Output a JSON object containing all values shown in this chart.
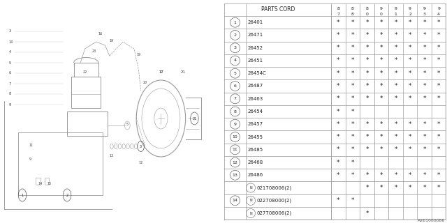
{
  "watermark": "A261000086",
  "col_header": "PARTS CORD",
  "year_cols": [
    "8\n7",
    "8\n8",
    "8\n0",
    "9\n0",
    "9\n1",
    "9\n2",
    "9\n3",
    "9\n4"
  ],
  "rows": [
    {
      "num": "1",
      "code": "26401",
      "has_n": false,
      "num14": false,
      "stars": [
        1,
        1,
        1,
        1,
        1,
        1,
        1,
        1
      ]
    },
    {
      "num": "2",
      "code": "26471",
      "has_n": false,
      "num14": false,
      "stars": [
        1,
        1,
        1,
        1,
        1,
        1,
        1,
        1
      ]
    },
    {
      "num": "3",
      "code": "26452",
      "has_n": false,
      "num14": false,
      "stars": [
        1,
        1,
        1,
        1,
        1,
        1,
        1,
        1
      ]
    },
    {
      "num": "4",
      "code": "26451",
      "has_n": false,
      "num14": false,
      "stars": [
        1,
        1,
        1,
        1,
        1,
        1,
        1,
        1
      ]
    },
    {
      "num": "5",
      "code": "26454C",
      "has_n": false,
      "num14": false,
      "stars": [
        1,
        1,
        1,
        1,
        1,
        1,
        1,
        1
      ]
    },
    {
      "num": "6",
      "code": "26487",
      "has_n": false,
      "num14": false,
      "stars": [
        1,
        1,
        1,
        1,
        1,
        1,
        1,
        1
      ]
    },
    {
      "num": "7",
      "code": "26463",
      "has_n": false,
      "num14": false,
      "stars": [
        1,
        1,
        1,
        1,
        1,
        1,
        1,
        1
      ]
    },
    {
      "num": "8",
      "code": "26454",
      "has_n": false,
      "num14": false,
      "stars": [
        1,
        1,
        0,
        0,
        0,
        0,
        0,
        0
      ]
    },
    {
      "num": "9",
      "code": "26457",
      "has_n": false,
      "num14": false,
      "stars": [
        1,
        1,
        1,
        1,
        1,
        1,
        1,
        1
      ]
    },
    {
      "num": "10",
      "code": "26455",
      "has_n": false,
      "num14": false,
      "stars": [
        1,
        1,
        1,
        1,
        1,
        1,
        1,
        1
      ]
    },
    {
      "num": "11",
      "code": "26485",
      "has_n": false,
      "num14": false,
      "stars": [
        1,
        1,
        1,
        1,
        1,
        1,
        1,
        1
      ]
    },
    {
      "num": "12",
      "code": "26468",
      "has_n": false,
      "num14": false,
      "stars": [
        1,
        1,
        0,
        0,
        0,
        0,
        0,
        0
      ]
    },
    {
      "num": "13",
      "code": "26486",
      "has_n": false,
      "num14": false,
      "stars": [
        1,
        1,
        1,
        1,
        1,
        1,
        1,
        1
      ]
    },
    {
      "num": "",
      "code": "021708006(2)",
      "has_n": true,
      "num14": false,
      "stars": [
        0,
        0,
        1,
        1,
        1,
        1,
        1,
        1
      ]
    },
    {
      "num": "14",
      "code": "022708000(2)",
      "has_n": true,
      "num14": true,
      "stars": [
        1,
        1,
        0,
        0,
        0,
        0,
        0,
        0
      ]
    },
    {
      "num": "",
      "code": "027708006(2)",
      "has_n": true,
      "num14": false,
      "stars": [
        0,
        0,
        1,
        0,
        0,
        0,
        0,
        0
      ]
    }
  ],
  "bg_color": "#ffffff",
  "grid_color": "#aaaaaa",
  "text_color": "#222222"
}
